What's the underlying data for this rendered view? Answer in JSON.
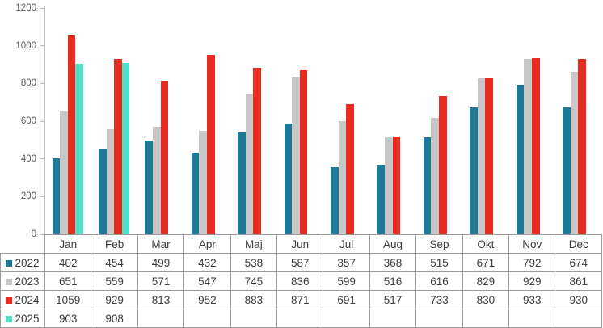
{
  "chart_data": {
    "type": "bar",
    "title": "",
    "xlabel": "",
    "ylabel": "",
    "categories": [
      "Jan",
      "Feb",
      "Mar",
      "Apr",
      "Maj",
      "Jun",
      "Jul",
      "Aug",
      "Sep",
      "Okt",
      "Nov",
      "Dec"
    ],
    "series": [
      {
        "name": "2022",
        "color": "#1C7A98",
        "values": [
          402,
          454,
          499,
          432,
          538,
          587,
          357,
          368,
          515,
          671,
          792,
          674
        ]
      },
      {
        "name": "2023",
        "color": "#C7C7C7",
        "values": [
          651,
          559,
          571,
          547,
          745,
          836,
          599,
          516,
          616,
          829,
          929,
          861
        ]
      },
      {
        "name": "2024",
        "color": "#EA2B1F",
        "values": [
          1059,
          929,
          813,
          952,
          883,
          871,
          691,
          517,
          733,
          830,
          933,
          930
        ]
      },
      {
        "name": "2025",
        "color": "#4FDEC6",
        "values": [
          903,
          908,
          null,
          null,
          null,
          null,
          null,
          null,
          null,
          null,
          null,
          null
        ]
      }
    ],
    "ylim": [
      0,
      1200
    ],
    "yticks": [
      0,
      200,
      400,
      600,
      800,
      1000,
      1200
    ],
    "grid": false,
    "legend_position": "data-table-left-column",
    "data_table_attached": true
  },
  "style": {
    "background": "#FFFFFF",
    "axis_color": "#BFBFBF",
    "tick_label_color": "#595959",
    "table_border_color": "#9B9B9B",
    "table_text_color": "#3D3D3D"
  }
}
